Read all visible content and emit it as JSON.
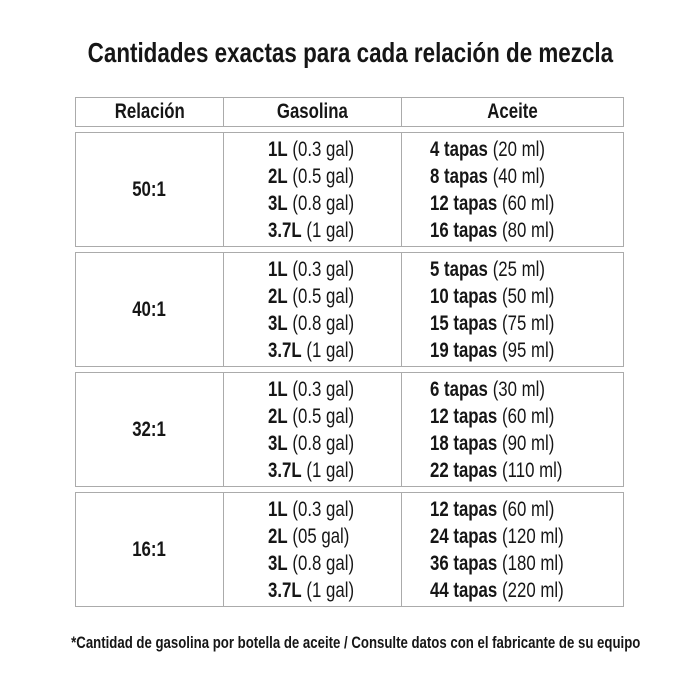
{
  "title": "Cantidades exactas para cada relación de mezcla",
  "table": {
    "headers": [
      "Relación",
      "Gasolina",
      "Aceite"
    ],
    "rows": [
      {
        "ratio": "50:1",
        "gasolina": [
          {
            "qty": "1L",
            "rest": "(0.3 gal)"
          },
          {
            "qty": "2L",
            "rest": "(0.5 gal)"
          },
          {
            "qty": "3L",
            "rest": "(0.8 gal)"
          },
          {
            "qty": "3.7L",
            "rest": "(1 gal)"
          }
        ],
        "aceite": [
          {
            "qty": "4 tapas",
            "rest": "(20 ml)"
          },
          {
            "qty": "8 tapas",
            "rest": "(40 ml)"
          },
          {
            "qty": "12 tapas",
            "rest": "(60 ml)"
          },
          {
            "qty": "16 tapas",
            "rest": "(80 ml)"
          }
        ]
      },
      {
        "ratio": "40:1",
        "gasolina": [
          {
            "qty": "1L",
            "rest": "(0.3 gal)"
          },
          {
            "qty": "2L",
            "rest": "(0.5 gal)"
          },
          {
            "qty": "3L",
            "rest": "(0.8 gal)"
          },
          {
            "qty": "3.7L",
            "rest": "(1 gal)"
          }
        ],
        "aceite": [
          {
            "qty": "5 tapas",
            "rest": "(25 ml)"
          },
          {
            "qty": "10 tapas",
            "rest": "(50 ml)"
          },
          {
            "qty": "15 tapas",
            "rest": "(75 ml)"
          },
          {
            "qty": "19 tapas",
            "rest": "(95 ml)"
          }
        ]
      },
      {
        "ratio": "32:1",
        "gasolina": [
          {
            "qty": "1L",
            "rest": "(0.3 gal)"
          },
          {
            "qty": "2L",
            "rest": "(0.5 gal)"
          },
          {
            "qty": "3L",
            "rest": "(0.8 gal)"
          },
          {
            "qty": "3.7L",
            "rest": "(1 gal)"
          }
        ],
        "aceite": [
          {
            "qty": "6 tapas",
            "rest": "(30 ml)"
          },
          {
            "qty": "12 tapas",
            "rest": "(60 ml)"
          },
          {
            "qty": "18 tapas",
            "rest": "(90 ml)"
          },
          {
            "qty": "22 tapas",
            "rest": "(110 ml)"
          }
        ]
      },
      {
        "ratio": "16:1",
        "gasolina": [
          {
            "qty": "1L",
            "rest": "(0.3 gal)"
          },
          {
            "qty": "2L",
            "rest": "(05 gal)"
          },
          {
            "qty": "3L",
            "rest": "(0.8 gal)"
          },
          {
            "qty": "3.7L",
            "rest": "(1 gal)"
          }
        ],
        "aceite": [
          {
            "qty": "12 tapas",
            "rest": "(60 ml)"
          },
          {
            "qty": "24 tapas",
            "rest": "(120 ml)"
          },
          {
            "qty": "36 tapas",
            "rest": "(180 ml)"
          },
          {
            "qty": "44 tapas",
            "rest": "(220 ml)"
          }
        ]
      }
    ]
  },
  "footnote": "*Cantidad de gasolina por botella de aceite / Consulte datos con el fabricante de su equipo",
  "colors": {
    "text": "#161616",
    "border": "#ababab",
    "background": "#ffffff"
  }
}
